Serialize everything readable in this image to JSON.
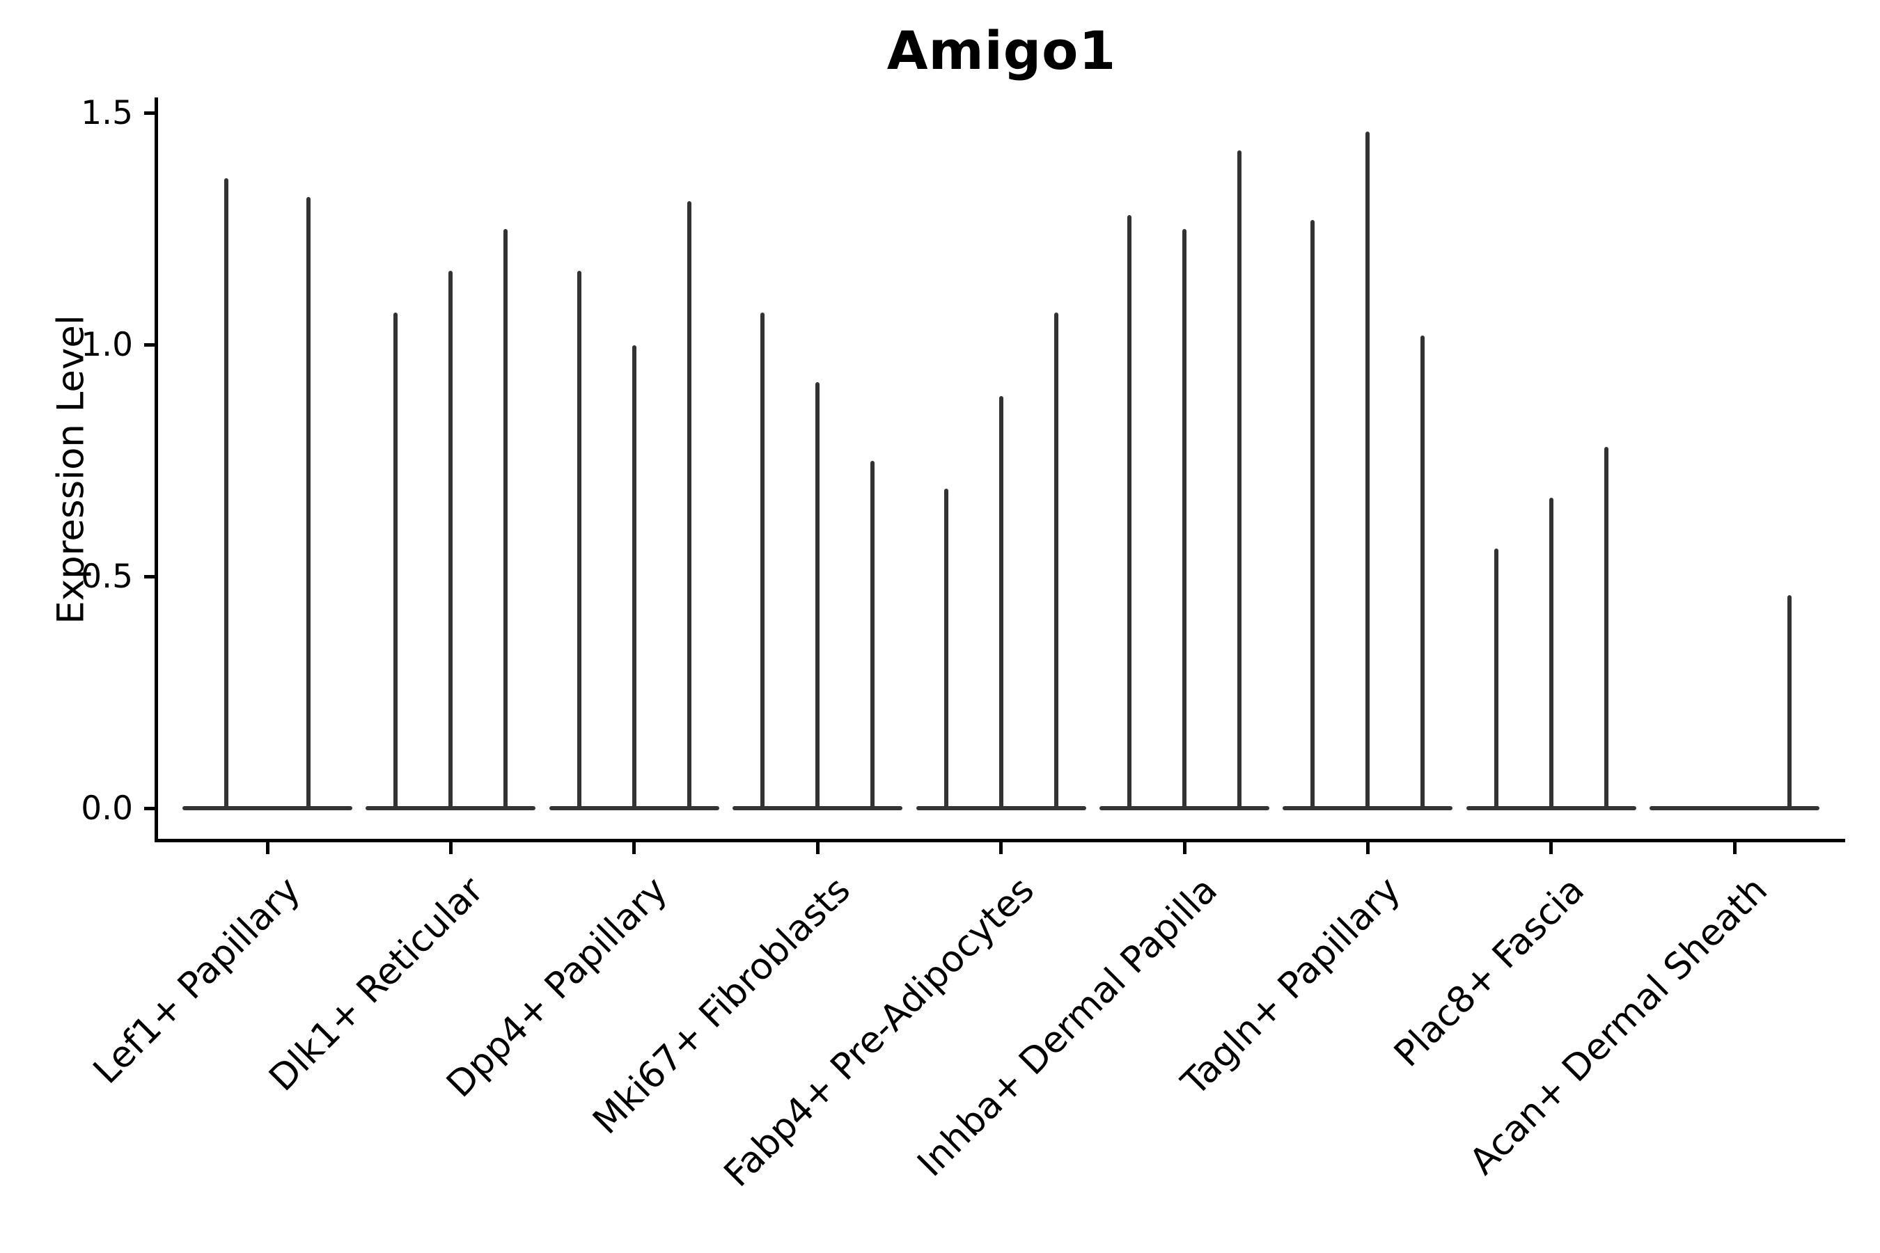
{
  "chart_data": {
    "type": "violin",
    "title": "Amigo1",
    "ylabel": "Expression Level",
    "xlabel": "",
    "ylim": [
      -0.074,
      1.534
    ],
    "yticks": [
      "0.0",
      "0.5",
      "1.0",
      "1.5"
    ],
    "ytick_values": [
      0.0,
      0.5,
      1.0,
      1.5
    ],
    "grid": false,
    "legend": "none",
    "note": "Each category contains adjacent ultra-thin violins (max-expression spikes over a flat base at 0); null means an all-zero violin with no spike",
    "categories": [
      {
        "label": "Lef1+ Papillary",
        "violin_maxima": [
          1.36,
          1.32
        ]
      },
      {
        "label": "Dlk1+ Reticular",
        "violin_maxima": [
          1.07,
          1.16,
          1.25
        ]
      },
      {
        "label": "Dpp4+ Papillary",
        "violin_maxima": [
          1.16,
          1.0,
          1.31
        ]
      },
      {
        "label": "Mki67+ Fibroblasts",
        "violin_maxima": [
          1.07,
          0.92,
          0.75
        ]
      },
      {
        "label": "Fabp4+ Pre-Adipocytes",
        "violin_maxima": [
          0.69,
          0.89,
          1.07
        ]
      },
      {
        "label": "Inhba+ Dermal Papilla",
        "violin_maxima": [
          1.28,
          1.25,
          1.42
        ]
      },
      {
        "label": "Tagln+ Papillary",
        "violin_maxima": [
          1.27,
          1.46,
          1.02
        ]
      },
      {
        "label": "Plac8+ Fascia",
        "violin_maxima": [
          0.56,
          0.67,
          0.78
        ]
      },
      {
        "label": "Acan+ Dermal Sheath",
        "violin_maxima": [
          null,
          null,
          0.46
        ]
      }
    ],
    "colors": {
      "violin": "#333333",
      "axis": "#000000",
      "background": "#ffffff"
    }
  }
}
